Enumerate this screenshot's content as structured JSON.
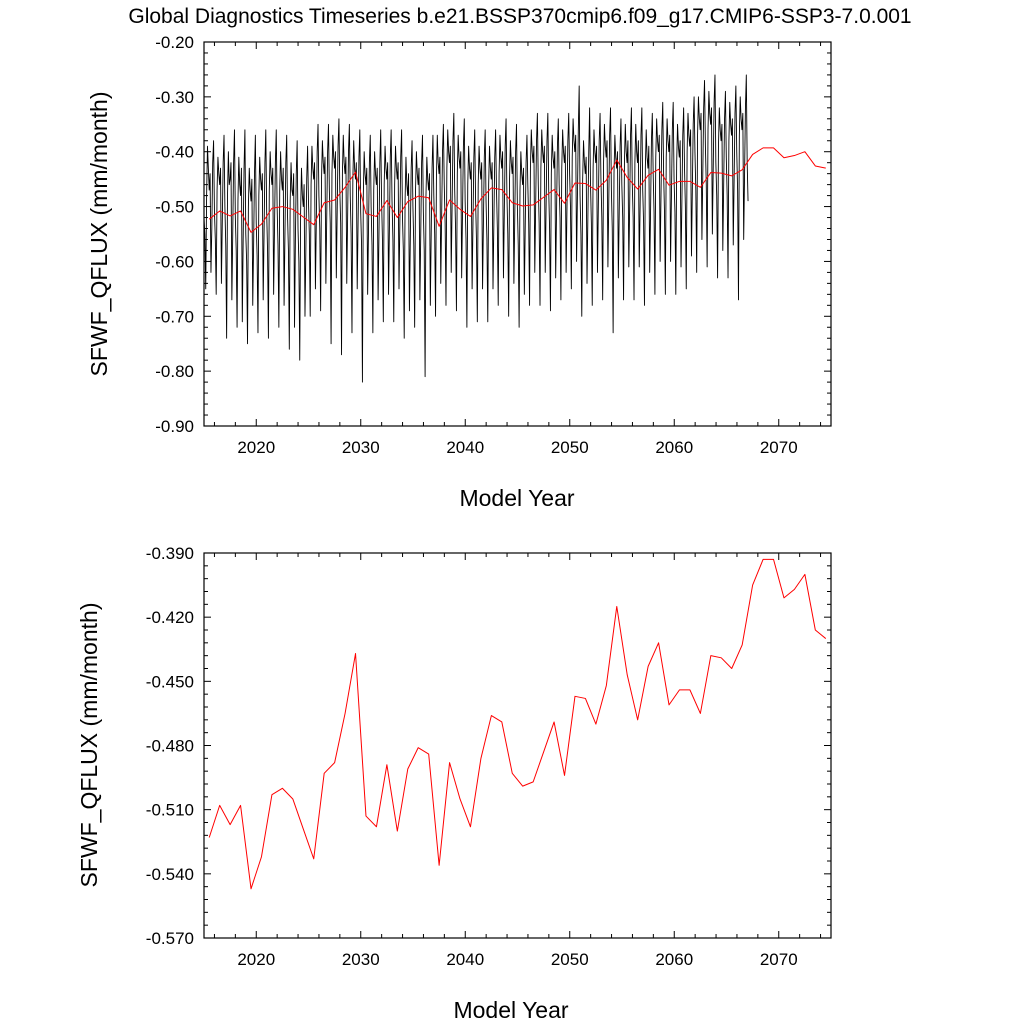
{
  "title": "Global Diagnostics Timeseries b.e21.BSSP370cmip6.f09_g17.CMIP6-SSP3-7.0.001",
  "colors": {
    "monthly_line": "#000000",
    "annual_line": "#ff0000",
    "background": "#ffffff"
  },
  "chart_data": [
    {
      "type": "line",
      "xlabel": "Model Year",
      "ylabel": "SFWF_QFLUX (mm/month)",
      "xlim": [
        2015,
        2075
      ],
      "ylim": [
        -0.9,
        -0.2
      ],
      "xticks": [
        2020,
        2030,
        2040,
        2050,
        2060,
        2070
      ],
      "xtick_labels": [
        "2020",
        "2030",
        "2040",
        "2050",
        "2060",
        "2070"
      ],
      "yticks": [
        -0.2,
        -0.3,
        -0.4,
        -0.5,
        -0.6,
        -0.7,
        -0.8,
        -0.9
      ],
      "ytick_labels": [
        "-0.20",
        "-0.30",
        "-0.40",
        "-0.50",
        "-0.60",
        "-0.70",
        "-0.80",
        "-0.90"
      ],
      "grid": false,
      "series": [
        {
          "kind": "monthly",
          "color": "#000000",
          "x_start": 2015.0,
          "x_step": 0.0833,
          "values": [
            -0.52,
            -0.55,
            -0.65,
            -0.48,
            -0.39,
            -0.43,
            -0.47,
            -0.44,
            -0.62,
            -0.54,
            -0.42,
            -0.38,
            -0.51,
            -0.56,
            -0.66,
            -0.47,
            -0.41,
            -0.44,
            -0.46,
            -0.43,
            -0.64,
            -0.53,
            -0.42,
            -0.37,
            -0.5,
            -0.57,
            -0.74,
            -0.48,
            -0.4,
            -0.46,
            -0.45,
            -0.42,
            -0.67,
            -0.55,
            -0.42,
            -0.36,
            -0.52,
            -0.58,
            -0.72,
            -0.49,
            -0.41,
            -0.46,
            -0.48,
            -0.43,
            -0.71,
            -0.56,
            -0.43,
            -0.36,
            -0.55,
            -0.6,
            -0.75,
            -0.5,
            -0.43,
            -0.47,
            -0.49,
            -0.45,
            -0.68,
            -0.57,
            -0.44,
            -0.37,
            -0.53,
            -0.59,
            -0.73,
            -0.48,
            -0.41,
            -0.45,
            -0.47,
            -0.44,
            -0.67,
            -0.55,
            -0.42,
            -0.36,
            -0.51,
            -0.58,
            -0.74,
            -0.47,
            -0.4,
            -0.44,
            -0.46,
            -0.43,
            -0.66,
            -0.54,
            -0.42,
            -0.36,
            -0.5,
            -0.57,
            -0.72,
            -0.47,
            -0.4,
            -0.45,
            -0.47,
            -0.43,
            -0.68,
            -0.55,
            -0.42,
            -0.37,
            -0.52,
            -0.58,
            -0.76,
            -0.49,
            -0.42,
            -0.47,
            -0.48,
            -0.44,
            -0.72,
            -0.56,
            -0.44,
            -0.38,
            -0.54,
            -0.6,
            -0.78,
            -0.51,
            -0.43,
            -0.48,
            -0.5,
            -0.46,
            -0.7,
            -0.58,
            -0.45,
            -0.39,
            -0.49,
            -0.55,
            -0.7,
            -0.46,
            -0.39,
            -0.43,
            -0.45,
            -0.42,
            -0.65,
            -0.53,
            -0.4,
            -0.35,
            -0.48,
            -0.54,
            -0.69,
            -0.45,
            -0.38,
            -0.42,
            -0.44,
            -0.41,
            -0.64,
            -0.52,
            -0.4,
            -0.35,
            -0.47,
            -0.53,
            -0.75,
            -0.44,
            -0.37,
            -0.41,
            -0.43,
            -0.4,
            -0.63,
            -0.51,
            -0.39,
            -0.34,
            -0.47,
            -0.53,
            -0.77,
            -0.44,
            -0.37,
            -0.42,
            -0.44,
            -0.41,
            -0.64,
            -0.52,
            -0.4,
            -0.35,
            -0.48,
            -0.55,
            -0.73,
            -0.45,
            -0.38,
            -0.43,
            -0.45,
            -0.42,
            -0.65,
            -0.53,
            -0.41,
            -0.36,
            -0.51,
            -0.57,
            -0.82,
            -0.48,
            -0.4,
            -0.44,
            -0.46,
            -0.43,
            -0.66,
            -0.54,
            -0.42,
            -0.37,
            -0.5,
            -0.57,
            -0.73,
            -0.47,
            -0.4,
            -0.44,
            -0.46,
            -0.43,
            -0.67,
            -0.55,
            -0.42,
            -0.36,
            -0.49,
            -0.56,
            -0.71,
            -0.46,
            -0.39,
            -0.43,
            -0.45,
            -0.42,
            -0.66,
            -0.54,
            -0.41,
            -0.36,
            -0.49,
            -0.56,
            -0.71,
            -0.46,
            -0.39,
            -0.43,
            -0.45,
            -0.42,
            -0.65,
            -0.53,
            -0.41,
            -0.36,
            -0.52,
            -0.58,
            -0.74,
            -0.49,
            -0.41,
            -0.46,
            -0.48,
            -0.44,
            -0.69,
            -0.56,
            -0.43,
            -0.38,
            -0.5,
            -0.57,
            -0.72,
            -0.47,
            -0.4,
            -0.44,
            -0.46,
            -0.43,
            -0.67,
            -0.55,
            -0.42,
            -0.37,
            -0.51,
            -0.58,
            -0.81,
            -0.48,
            -0.41,
            -0.45,
            -0.47,
            -0.44,
            -0.68,
            -0.55,
            -0.43,
            -0.37,
            -0.48,
            -0.55,
            -0.7,
            -0.45,
            -0.37,
            -0.42,
            -0.44,
            -0.41,
            -0.64,
            -0.52,
            -0.4,
            -0.35,
            -0.46,
            -0.53,
            -0.68,
            -0.43,
            -0.36,
            -0.4,
            -0.42,
            -0.39,
            -0.62,
            -0.5,
            -0.38,
            -0.33,
            -0.47,
            -0.54,
            -0.69,
            -0.44,
            -0.37,
            -0.41,
            -0.43,
            -0.4,
            -0.63,
            -0.51,
            -0.39,
            -0.34,
            -0.49,
            -0.56,
            -0.72,
            -0.46,
            -0.39,
            -0.43,
            -0.45,
            -0.42,
            -0.65,
            -0.53,
            -0.41,
            -0.36,
            -0.49,
            -0.56,
            -0.71,
            -0.46,
            -0.39,
            -0.43,
            -0.45,
            -0.42,
            -0.65,
            -0.53,
            -0.41,
            -0.36,
            -0.49,
            -0.56,
            -0.71,
            -0.46,
            -0.39,
            -0.43,
            -0.45,
            -0.42,
            -0.65,
            -0.53,
            -0.41,
            -0.36,
            -0.47,
            -0.54,
            -0.68,
            -0.44,
            -0.37,
            -0.41,
            -0.43,
            -0.4,
            -0.63,
            -0.51,
            -0.39,
            -0.34,
            -0.48,
            -0.55,
            -0.7,
            -0.45,
            -0.38,
            -0.42,
            -0.44,
            -0.41,
            -0.64,
            -0.52,
            -0.4,
            -0.35,
            -0.5,
            -0.57,
            -0.72,
            -0.47,
            -0.4,
            -0.44,
            -0.46,
            -0.43,
            -0.66,
            -0.54,
            -0.42,
            -0.37,
            -0.46,
            -0.53,
            -0.68,
            -0.43,
            -0.36,
            -0.4,
            -0.42,
            -0.39,
            -0.62,
            -0.5,
            -0.38,
            -0.33,
            -0.46,
            -0.53,
            -0.68,
            -0.43,
            -0.36,
            -0.4,
            -0.42,
            -0.39,
            -0.62,
            -0.5,
            -0.38,
            -0.33,
            -0.47,
            -0.54,
            -0.69,
            -0.44,
            -0.37,
            -0.41,
            -0.43,
            -0.4,
            -0.63,
            -0.51,
            -0.39,
            -0.34,
            -0.46,
            -0.52,
            -0.67,
            -0.43,
            -0.36,
            -0.4,
            -0.42,
            -0.39,
            -0.62,
            -0.5,
            -0.38,
            -0.33,
            -0.44,
            -0.5,
            -0.65,
            -0.41,
            -0.34,
            -0.38,
            -0.4,
            -0.37,
            -0.6,
            -0.48,
            -0.36,
            -0.28,
            -0.48,
            -0.55,
            -0.7,
            -0.45,
            -0.38,
            -0.42,
            -0.44,
            -0.41,
            -0.64,
            -0.52,
            -0.4,
            -0.32,
            -0.46,
            -0.53,
            -0.68,
            -0.43,
            -0.36,
            -0.4,
            -0.42,
            -0.39,
            -0.62,
            -0.5,
            -0.38,
            -0.33,
            -0.45,
            -0.52,
            -0.67,
            -0.42,
            -0.35,
            -0.39,
            -0.41,
            -0.38,
            -0.61,
            -0.49,
            -0.37,
            -0.32,
            -0.47,
            -0.54,
            -0.73,
            -0.44,
            -0.37,
            -0.41,
            -0.43,
            -0.4,
            -0.63,
            -0.51,
            -0.39,
            -0.34,
            -0.46,
            -0.52,
            -0.67,
            -0.42,
            -0.35,
            -0.4,
            -0.42,
            -0.38,
            -0.61,
            -0.5,
            -0.37,
            -0.32,
            -0.46,
            -0.52,
            -0.67,
            -0.42,
            -0.35,
            -0.4,
            -0.42,
            -0.38,
            -0.61,
            -0.5,
            -0.37,
            -0.32,
            -0.47,
            -0.53,
            -0.68,
            -0.43,
            -0.36,
            -0.41,
            -0.43,
            -0.39,
            -0.62,
            -0.51,
            -0.38,
            -0.33,
            -0.44,
            -0.51,
            -0.66,
            -0.41,
            -0.34,
            -0.38,
            -0.4,
            -0.37,
            -0.6,
            -0.48,
            -0.36,
            -0.31,
            -0.44,
            -0.51,
            -0.66,
            -0.41,
            -0.34,
            -0.38,
            -0.4,
            -0.37,
            -0.6,
            -0.48,
            -0.36,
            -0.31,
            -0.45,
            -0.51,
            -0.66,
            -0.42,
            -0.35,
            -0.39,
            -0.41,
            -0.38,
            -0.61,
            -0.49,
            -0.37,
            -0.32,
            -0.43,
            -0.5,
            -0.65,
            -0.4,
            -0.33,
            -0.37,
            -0.39,
            -0.36,
            -0.59,
            -0.47,
            -0.35,
            -0.3,
            -0.4,
            -0.47,
            -0.62,
            -0.37,
            -0.3,
            -0.34,
            -0.36,
            -0.33,
            -0.56,
            -0.44,
            -0.32,
            -0.27,
            -0.39,
            -0.46,
            -0.61,
            -0.36,
            -0.29,
            -0.33,
            -0.35,
            -0.32,
            -0.55,
            -0.43,
            -0.31,
            -0.26,
            -0.42,
            -0.48,
            -0.63,
            -0.39,
            -0.32,
            -0.36,
            -0.38,
            -0.35,
            -0.58,
            -0.46,
            -0.34,
            -0.29,
            -0.41,
            -0.48,
            -0.63,
            -0.38,
            -0.31,
            -0.35,
            -0.37,
            -0.34,
            -0.57,
            -0.45,
            -0.33,
            -0.28,
            -0.4,
            -0.47,
            -0.67,
            -0.37,
            -0.3,
            -0.34,
            -0.36,
            -0.33,
            -0.56,
            -0.44,
            -0.32,
            -0.26,
            -0.42,
            -0.49
          ]
        },
        {
          "kind": "annual",
          "color": "#ff0000",
          "x": [
            2015.5,
            2016.5,
            2017.5,
            2018.5,
            2019.5,
            2020.5,
            2021.5,
            2022.5,
            2023.5,
            2024.5,
            2025.5,
            2026.5,
            2027.5,
            2028.5,
            2029.5,
            2030.5,
            2031.5,
            2032.5,
            2033.5,
            2034.5,
            2035.5,
            2036.5,
            2037.5,
            2038.5,
            2039.5,
            2040.5,
            2041.5,
            2042.5,
            2043.5,
            2044.5,
            2045.5,
            2046.5,
            2047.5,
            2048.5,
            2049.5,
            2050.5,
            2051.5,
            2052.5,
            2053.5,
            2054.5,
            2055.5,
            2056.5,
            2057.5,
            2058.5,
            2059.5,
            2060.5,
            2061.5,
            2062.5,
            2063.5,
            2064.5,
            2065.5,
            2066.5,
            2067.5,
            2068.5,
            2069.5,
            2070.5,
            2071.5,
            2072.5,
            2073.5,
            2074.5
          ],
          "values": [
            -0.523,
            -0.508,
            -0.517,
            -0.508,
            -0.547,
            -0.532,
            -0.503,
            -0.5,
            -0.505,
            -0.519,
            -0.533,
            -0.493,
            -0.488,
            -0.465,
            -0.437,
            -0.513,
            -0.518,
            -0.489,
            -0.52,
            -0.491,
            -0.481,
            -0.484,
            -0.536,
            -0.488,
            -0.505,
            -0.518,
            -0.486,
            -0.466,
            -0.469,
            -0.493,
            -0.499,
            -0.497,
            -0.483,
            -0.469,
            -0.494,
            -0.457,
            -0.458,
            -0.47,
            -0.452,
            -0.415,
            -0.447,
            -0.468,
            -0.443,
            -0.432,
            -0.461,
            -0.454,
            -0.454,
            -0.465,
            -0.438,
            -0.439,
            -0.444,
            -0.433,
            -0.405,
            -0.393,
            -0.393,
            -0.411,
            -0.407,
            -0.4,
            -0.426,
            -0.43
          ]
        }
      ]
    },
    {
      "type": "line",
      "xlabel": "Model Year",
      "ylabel": "SFWF_QFLUX (mm/month)",
      "xlim": [
        2015,
        2075
      ],
      "ylim": [
        -0.57,
        -0.39
      ],
      "xticks": [
        2020,
        2030,
        2040,
        2050,
        2060,
        2070
      ],
      "xtick_labels": [
        "2020",
        "2030",
        "2040",
        "2050",
        "2060",
        "2070"
      ],
      "yticks": [
        -0.39,
        -0.42,
        -0.45,
        -0.48,
        -0.51,
        -0.54,
        -0.57
      ],
      "ytick_labels": [
        "-0.390",
        "-0.420",
        "-0.450",
        "-0.480",
        "-0.510",
        "-0.540",
        "-0.570"
      ],
      "grid": false,
      "series": [
        {
          "kind": "annual",
          "color": "#ff0000",
          "x": [
            2015.5,
            2016.5,
            2017.5,
            2018.5,
            2019.5,
            2020.5,
            2021.5,
            2022.5,
            2023.5,
            2024.5,
            2025.5,
            2026.5,
            2027.5,
            2028.5,
            2029.5,
            2030.5,
            2031.5,
            2032.5,
            2033.5,
            2034.5,
            2035.5,
            2036.5,
            2037.5,
            2038.5,
            2039.5,
            2040.5,
            2041.5,
            2042.5,
            2043.5,
            2044.5,
            2045.5,
            2046.5,
            2047.5,
            2048.5,
            2049.5,
            2050.5,
            2051.5,
            2052.5,
            2053.5,
            2054.5,
            2055.5,
            2056.5,
            2057.5,
            2058.5,
            2059.5,
            2060.5,
            2061.5,
            2062.5,
            2063.5,
            2064.5,
            2065.5,
            2066.5,
            2067.5,
            2068.5,
            2069.5,
            2070.5,
            2071.5,
            2072.5,
            2073.5,
            2074.5
          ],
          "values": [
            -0.523,
            -0.508,
            -0.517,
            -0.508,
            -0.547,
            -0.532,
            -0.503,
            -0.5,
            -0.505,
            -0.519,
            -0.533,
            -0.493,
            -0.488,
            -0.465,
            -0.437,
            -0.513,
            -0.518,
            -0.489,
            -0.52,
            -0.491,
            -0.481,
            -0.484,
            -0.536,
            -0.488,
            -0.505,
            -0.518,
            -0.486,
            -0.466,
            -0.469,
            -0.493,
            -0.499,
            -0.497,
            -0.483,
            -0.469,
            -0.494,
            -0.457,
            -0.458,
            -0.47,
            -0.452,
            -0.415,
            -0.447,
            -0.468,
            -0.443,
            -0.432,
            -0.461,
            -0.454,
            -0.454,
            -0.465,
            -0.438,
            -0.439,
            -0.444,
            -0.433,
            -0.405,
            -0.393,
            -0.393,
            -0.411,
            -0.407,
            -0.4,
            -0.426,
            -0.43
          ]
        }
      ]
    }
  ]
}
